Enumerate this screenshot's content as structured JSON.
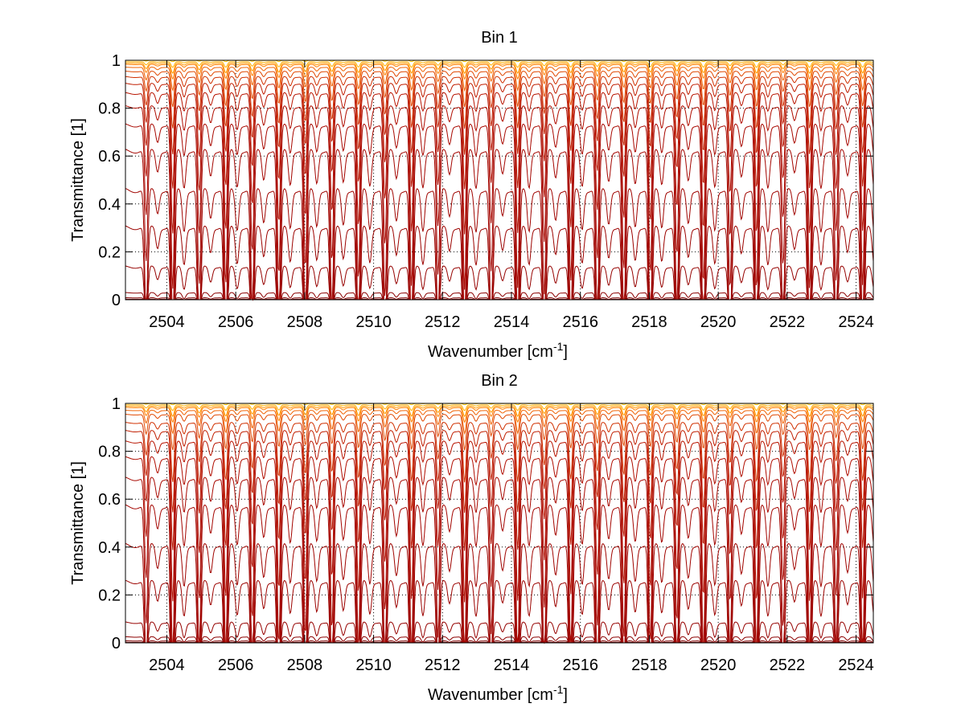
{
  "chart_data": [
    {
      "type": "line",
      "title": "Bin 1",
      "xlabel": "Wavenumber [cm",
      "xlabel_sup": "-1",
      "xlabel_end": "]",
      "ylabel": "Transmittance [1]",
      "xlim": [
        2502.8,
        2524.5
      ],
      "ylim": [
        0,
        1
      ],
      "xticks": [
        2504,
        2506,
        2508,
        2510,
        2512,
        2514,
        2516,
        2518,
        2520,
        2522,
        2524
      ],
      "yticks": [
        0,
        0.2,
        0.4,
        0.6,
        0.8,
        1
      ],
      "ytick_labels": [
        "0",
        "0.2",
        "0.4",
        "0.6",
        "0.8",
        "1"
      ],
      "grid": true,
      "line_spacing_cm1": 0.77,
      "line_offset_cm1": 2503.4,
      "series_baseline": [
        1.0,
        0.995,
        0.99,
        0.985,
        0.975,
        0.96,
        0.94,
        0.915,
        0.88,
        0.83,
        0.76,
        0.66,
        0.5,
        0.34,
        0.16,
        0.035,
        0.01,
        0.003
      ],
      "series_colors": [
        "#ffcc00",
        "#ffb000",
        "#ff9900",
        "#ff7f00",
        "#f06000",
        "#e04800",
        "#d03000",
        "#c01e00",
        "#b81400",
        "#b00d00",
        "#a80800",
        "#a40500",
        "#a00400",
        "#9c0300",
        "#960200",
        "#8c0000",
        "#800000",
        "#6a0000"
      ]
    },
    {
      "type": "line",
      "title": "Bin 2",
      "xlabel": "Wavenumber [cm",
      "xlabel_sup": "-1",
      "xlabel_end": "]",
      "ylabel": "Transmittance [1]",
      "xlim": [
        2502.8,
        2524.5
      ],
      "ylim": [
        0,
        1
      ],
      "xticks": [
        2504,
        2506,
        2508,
        2510,
        2512,
        2514,
        2516,
        2518,
        2520,
        2522,
        2524
      ],
      "yticks": [
        0,
        0.2,
        0.4,
        0.6,
        0.8,
        1
      ],
      "ytick_labels": [
        "0",
        "0.2",
        "0.4",
        "0.6",
        "0.8",
        "1"
      ],
      "grid": true,
      "line_spacing_cm1": 0.77,
      "line_offset_cm1": 2503.4,
      "series_baseline": [
        1.0,
        0.995,
        0.99,
        0.985,
        0.975,
        0.96,
        0.93,
        0.9,
        0.86,
        0.8,
        0.72,
        0.61,
        0.45,
        0.29,
        0.1,
        0.03,
        0.01,
        0.003
      ],
      "series_colors": [
        "#ffcc00",
        "#ffb000",
        "#ff9900",
        "#ff7f00",
        "#f06000",
        "#e04800",
        "#d03000",
        "#c01e00",
        "#b81400",
        "#b00d00",
        "#a80800",
        "#a40500",
        "#a00400",
        "#9c0300",
        "#960200",
        "#8c0000",
        "#800000",
        "#6a0000"
      ]
    }
  ]
}
